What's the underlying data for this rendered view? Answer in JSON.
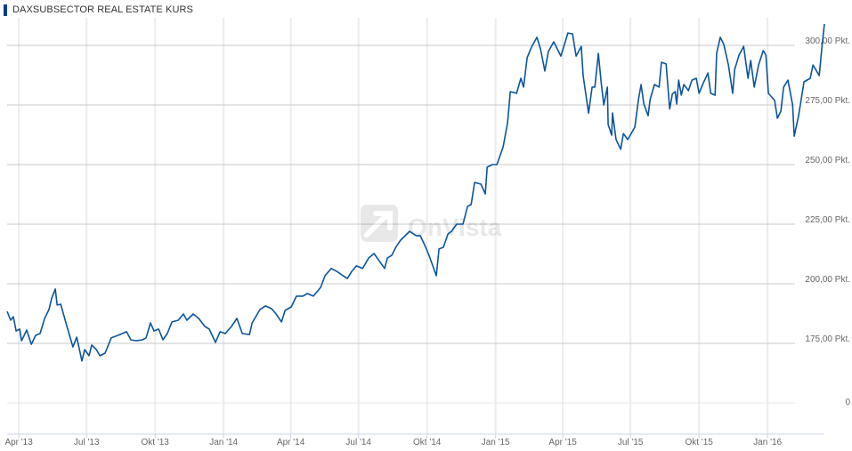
{
  "header": {
    "title": "DAXSUBSECTOR REAL ESTATE KURS",
    "accent": "#003d8f"
  },
  "watermark": {
    "text": "OnVista"
  },
  "chart_data": {
    "type": "line",
    "title": "DAXSUBSECTOR REAL ESTATE KURS",
    "xlabel": "",
    "ylabel": "",
    "x_unit": "decimal year",
    "xlim": [
      2013.204,
      2016.209
    ],
    "ylim": [
      175,
      300
    ],
    "grid": true,
    "line_color": "#0a559e",
    "yticks": [
      {
        "value": 300,
        "label": "300,00 Pkt."
      },
      {
        "value": 275,
        "label": "275,00 Pkt."
      },
      {
        "value": 250,
        "label": "250,00 Pkt."
      },
      {
        "value": 225,
        "label": "225,00 Pkt."
      },
      {
        "value": 200,
        "label": "200,00 Pkt."
      },
      {
        "value": 175,
        "label": "175,00 Pkt."
      }
    ],
    "axis_break_label": "0",
    "xticks": [
      {
        "value": 2013.247,
        "label": "Apr '13"
      },
      {
        "value": 2013.496,
        "label": "Jul '13"
      },
      {
        "value": 2013.748,
        "label": "Okt '13"
      },
      {
        "value": 2014.0,
        "label": "Jan '14"
      },
      {
        "value": 2014.247,
        "label": "Apr '14"
      },
      {
        "value": 2014.496,
        "label": "Jul '14"
      },
      {
        "value": 2014.748,
        "label": "Okt '14"
      },
      {
        "value": 2015.0,
        "label": "Jan '15"
      },
      {
        "value": 2015.247,
        "label": "Apr '15"
      },
      {
        "value": 2015.496,
        "label": "Jul '15"
      },
      {
        "value": 2015.748,
        "label": "Okt '15"
      },
      {
        "value": 2016.0,
        "label": "Jan '16"
      }
    ],
    "series": [
      {
        "name": "DAXsubsector Real Estate",
        "points": [
          [
            2013.204,
            188.4
          ],
          [
            2013.217,
            184.7
          ],
          [
            2013.227,
            186.2
          ],
          [
            2013.237,
            180.2
          ],
          [
            2013.25,
            181.0
          ],
          [
            2013.257,
            176.1
          ],
          [
            2013.276,
            180.6
          ],
          [
            2013.293,
            174.6
          ],
          [
            2013.309,
            178.4
          ],
          [
            2013.325,
            179.1
          ],
          [
            2013.342,
            185.5
          ],
          [
            2013.358,
            189.2
          ],
          [
            2013.368,
            194.0
          ],
          [
            2013.381,
            197.8
          ],
          [
            2013.388,
            191.1
          ],
          [
            2013.401,
            191.4
          ],
          [
            2013.424,
            182.1
          ],
          [
            2013.446,
            173.5
          ],
          [
            2013.46,
            177.6
          ],
          [
            2013.479,
            167.6
          ],
          [
            2013.489,
            172.4
          ],
          [
            2013.505,
            169.8
          ],
          [
            2013.515,
            174.3
          ],
          [
            2013.532,
            172.4
          ],
          [
            2013.545,
            169.8
          ],
          [
            2013.564,
            170.9
          ],
          [
            2013.587,
            177.3
          ],
          [
            2013.613,
            178.4
          ],
          [
            2013.643,
            179.9
          ],
          [
            2013.659,
            176.5
          ],
          [
            2013.679,
            176.1
          ],
          [
            2013.702,
            176.5
          ],
          [
            2013.715,
            177.3
          ],
          [
            2013.731,
            183.6
          ],
          [
            2013.744,
            180.2
          ],
          [
            2013.761,
            181.0
          ],
          [
            2013.777,
            176.5
          ],
          [
            2013.793,
            179.1
          ],
          [
            2013.81,
            184.0
          ],
          [
            2013.833,
            184.7
          ],
          [
            2013.852,
            187.3
          ],
          [
            2013.865,
            184.7
          ],
          [
            2013.888,
            187.3
          ],
          [
            2013.908,
            185.5
          ],
          [
            2013.931,
            182.1
          ],
          [
            2013.947,
            181.0
          ],
          [
            2013.97,
            175.4
          ],
          [
            2013.987,
            179.9
          ],
          [
            2014.006,
            179.1
          ],
          [
            2014.029,
            182.1
          ],
          [
            2014.049,
            185.5
          ],
          [
            2014.069,
            179.1
          ],
          [
            2014.095,
            178.7
          ],
          [
            2014.105,
            183.6
          ],
          [
            2014.134,
            189.2
          ],
          [
            2014.154,
            190.7
          ],
          [
            2014.177,
            189.5
          ],
          [
            2014.193,
            187.3
          ],
          [
            2014.213,
            184.0
          ],
          [
            2014.226,
            188.8
          ],
          [
            2014.249,
            190.3
          ],
          [
            2014.268,
            194.8
          ],
          [
            2014.291,
            194.8
          ],
          [
            2014.308,
            195.9
          ],
          [
            2014.33,
            194.8
          ],
          [
            2014.357,
            198.5
          ],
          [
            2014.373,
            203.4
          ],
          [
            2014.396,
            206.4
          ],
          [
            2014.416,
            205.2
          ],
          [
            2014.439,
            203.4
          ],
          [
            2014.455,
            202.2
          ],
          [
            2014.471,
            205.2
          ],
          [
            2014.488,
            207.5
          ],
          [
            2014.511,
            206.4
          ],
          [
            2014.533,
            210.8
          ],
          [
            2014.553,
            212.7
          ],
          [
            2014.569,
            210.1
          ],
          [
            2014.592,
            206.4
          ],
          [
            2014.602,
            210.8
          ],
          [
            2014.618,
            211.9
          ],
          [
            2014.635,
            215.7
          ],
          [
            2014.651,
            218.3
          ],
          [
            2014.684,
            222.0
          ],
          [
            2014.707,
            220.2
          ],
          [
            2014.723,
            220.2
          ],
          [
            2014.743,
            215.3
          ],
          [
            2014.759,
            210.8
          ],
          [
            2014.782,
            203.4
          ],
          [
            2014.792,
            214.6
          ],
          [
            2014.808,
            215.3
          ],
          [
            2014.825,
            220.9
          ],
          [
            2014.838,
            222.0
          ],
          [
            2014.857,
            225.0
          ],
          [
            2014.88,
            225.0
          ],
          [
            2014.897,
            232.5
          ],
          [
            2014.91,
            233.2
          ],
          [
            2014.923,
            242.5
          ],
          [
            2014.946,
            241.8
          ],
          [
            2014.962,
            237.7
          ],
          [
            2014.969,
            248.9
          ],
          [
            2014.989,
            250.0
          ],
          [
            2015.005,
            250.0
          ],
          [
            2015.028,
            257.5
          ],
          [
            2015.044,
            267.5
          ],
          [
            2015.054,
            280.6
          ],
          [
            2015.077,
            279.9
          ],
          [
            2015.093,
            286.2
          ],
          [
            2015.103,
            282.5
          ],
          [
            2015.116,
            294.8
          ],
          [
            2015.132,
            299.3
          ],
          [
            2015.152,
            303.4
          ],
          [
            2015.165,
            298.5
          ],
          [
            2015.181,
            289.2
          ],
          [
            2015.194,
            297.4
          ],
          [
            2015.214,
            301.5
          ],
          [
            2015.24,
            295.5
          ],
          [
            2015.266,
            305.2
          ],
          [
            2015.283,
            304.8
          ],
          [
            2015.296,
            295.5
          ],
          [
            2015.315,
            299.6
          ],
          [
            2015.322,
            287.3
          ],
          [
            2015.342,
            271.6
          ],
          [
            2015.355,
            282.5
          ],
          [
            2015.365,
            282.5
          ],
          [
            2015.378,
            296.6
          ],
          [
            2015.388,
            284.7
          ],
          [
            2015.398,
            275.0
          ],
          [
            2015.411,
            282.5
          ],
          [
            2015.414,
            266.8
          ],
          [
            2015.427,
            262.3
          ],
          [
            2015.43,
            271.6
          ],
          [
            2015.443,
            260.5
          ],
          [
            2015.46,
            256.4
          ],
          [
            2015.47,
            263.0
          ],
          [
            2015.486,
            260.5
          ],
          [
            2015.512,
            265.7
          ],
          [
            2015.525,
            276.9
          ],
          [
            2015.535,
            283.6
          ],
          [
            2015.545,
            275.4
          ],
          [
            2015.561,
            270.5
          ],
          [
            2015.568,
            277.2
          ],
          [
            2015.584,
            283.6
          ],
          [
            2015.601,
            282.5
          ],
          [
            2015.61,
            292.9
          ],
          [
            2015.627,
            292.2
          ],
          [
            2015.64,
            273.3
          ],
          [
            2015.65,
            279.6
          ],
          [
            2015.66,
            280.6
          ],
          [
            2015.666,
            275.4
          ],
          [
            2015.673,
            285.4
          ],
          [
            2015.683,
            279.1
          ],
          [
            2015.692,
            283.6
          ],
          [
            2015.709,
            281.0
          ],
          [
            2015.722,
            285.4
          ],
          [
            2015.738,
            286.2
          ],
          [
            2015.748,
            279.9
          ],
          [
            2015.764,
            284.3
          ],
          [
            2015.781,
            288.4
          ],
          [
            2015.791,
            279.9
          ],
          [
            2015.807,
            279.1
          ],
          [
            2015.813,
            296.7
          ],
          [
            2015.826,
            303.4
          ],
          [
            2015.839,
            300.4
          ],
          [
            2015.856,
            291.8
          ],
          [
            2015.872,
            279.9
          ],
          [
            2015.879,
            289.9
          ],
          [
            2015.895,
            295.9
          ],
          [
            2015.912,
            299.6
          ],
          [
            2015.928,
            286.2
          ],
          [
            2015.938,
            293.7
          ],
          [
            2015.951,
            282.5
          ],
          [
            2015.967,
            291.8
          ],
          [
            2015.984,
            297.8
          ],
          [
            2015.994,
            295.9
          ],
          [
            2016.003,
            279.9
          ],
          [
            2016.026,
            276.9
          ],
          [
            2016.036,
            269.4
          ],
          [
            2016.049,
            272.4
          ],
          [
            2016.059,
            282.5
          ],
          [
            2016.075,
            285.4
          ],
          [
            2016.092,
            275.0
          ],
          [
            2016.098,
            261.9
          ],
          [
            2016.114,
            270.5
          ],
          [
            2016.134,
            284.7
          ],
          [
            2016.157,
            286.2
          ],
          [
            2016.167,
            291.8
          ],
          [
            2016.19,
            287.3
          ],
          [
            2016.2,
            299.6
          ],
          [
            2016.209,
            309.0
          ]
        ]
      }
    ]
  }
}
